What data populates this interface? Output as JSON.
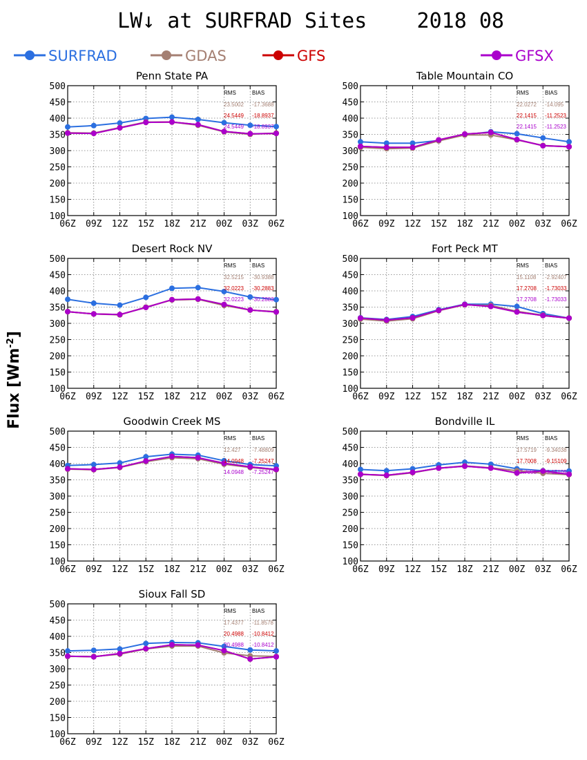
{
  "title": "LW↓ at SURFRAD Sites    2018 08",
  "ylabel_main": "Flux [Wm",
  "ylabel_sup": "-2",
  "ylabel_end": "]",
  "legend": [
    {
      "name": "SURFRAD",
      "color": "#2b6fe0"
    },
    {
      "name": "GDAS",
      "color": "#a47f72"
    },
    {
      "name": "GFS",
      "color": "#cc0000"
    },
    {
      "name": "GFSX",
      "color": "#aa00cc"
    }
  ],
  "stats_header": {
    "rms": "RMS",
    "bias": "BIAS"
  },
  "chart_data": [
    {
      "type": "line",
      "title": "Penn State PA",
      "categories": [
        "06Z",
        "09Z",
        "12Z",
        "15Z",
        "18Z",
        "21Z",
        "00Z",
        "03Z",
        "06Z"
      ],
      "ylim": [
        100,
        500
      ],
      "yticks": [
        100,
        150,
        200,
        250,
        300,
        350,
        400,
        450,
        500
      ],
      "grid": true,
      "series": [
        {
          "name": "SURFRAD",
          "color": "#2b6fe0",
          "values": [
            373,
            377,
            385,
            399,
            403,
            396,
            386,
            378,
            374
          ]
        },
        {
          "name": "GDAS",
          "color": "#a47f72",
          "values": [
            355,
            354,
            371,
            388,
            388,
            378,
            358,
            350,
            354
          ]
        },
        {
          "name": "GFS",
          "color": "#cc0000",
          "values": [
            354,
            353,
            370,
            387,
            388,
            380,
            359,
            352,
            353
          ]
        },
        {
          "name": "GFSX",
          "color": "#aa00cc",
          "values": [
            354,
            353,
            370,
            387,
            388,
            380,
            359,
            352,
            353
          ]
        }
      ],
      "stats": [
        {
          "series": "GDAS",
          "rms": "23.5002",
          "bias": "-17.3688"
        },
        {
          "series": "GFS",
          "rms": "24.5449",
          "bias": "-18.8937"
        },
        {
          "series": "GFSX",
          "rms": "24.5449",
          "bias": "-18.8937"
        }
      ]
    },
    {
      "type": "line",
      "title": "Table Mountain CO",
      "categories": [
        "06Z",
        "09Z",
        "12Z",
        "15Z",
        "18Z",
        "21Z",
        "00Z",
        "03Z",
        "06Z"
      ],
      "ylim": [
        100,
        500
      ],
      "yticks": [
        100,
        150,
        200,
        250,
        300,
        350,
        400,
        450,
        500
      ],
      "grid": true,
      "series": [
        {
          "name": "SURFRAD",
          "color": "#2b6fe0",
          "values": [
            327,
            323,
            323,
            331,
            349,
            358,
            352,
            339,
            327
          ]
        },
        {
          "name": "GDAS",
          "color": "#a47f72",
          "values": [
            310,
            306,
            308,
            330,
            348,
            348,
            333,
            316,
            312
          ]
        },
        {
          "name": "GFS",
          "color": "#cc0000",
          "values": [
            313,
            310,
            310,
            333,
            351,
            356,
            334,
            315,
            312
          ]
        },
        {
          "name": "GFSX",
          "color": "#aa00cc",
          "values": [
            313,
            310,
            310,
            333,
            351,
            356,
            334,
            315,
            312
          ]
        }
      ],
      "stats": [
        {
          "series": "GDAS",
          "rms": "22.0272",
          "bias": "-14.095"
        },
        {
          "series": "GFS",
          "rms": "22.1415",
          "bias": "-11.2523"
        },
        {
          "series": "GFSX",
          "rms": "22.1415",
          "bias": "-11.2523"
        }
      ]
    },
    {
      "type": "line",
      "title": "Desert Rock NV",
      "categories": [
        "06Z",
        "09Z",
        "12Z",
        "15Z",
        "18Z",
        "21Z",
        "00Z",
        "03Z",
        "06Z"
      ],
      "ylim": [
        100,
        500
      ],
      "yticks": [
        100,
        150,
        200,
        250,
        300,
        350,
        400,
        450,
        500
      ],
      "grid": true,
      "series": [
        {
          "name": "SURFRAD",
          "color": "#2b6fe0",
          "values": [
            374,
            362,
            356,
            380,
            408,
            410,
            398,
            381,
            373
          ]
        },
        {
          "name": "GDAS",
          "color": "#a47f72",
          "values": [
            336,
            329,
            326,
            350,
            372,
            374,
            355,
            341,
            336
          ]
        },
        {
          "name": "GFS",
          "color": "#cc0000",
          "values": [
            336,
            329,
            327,
            349,
            373,
            375,
            358,
            341,
            335
          ]
        },
        {
          "name": "GFSX",
          "color": "#aa00cc",
          "values": [
            336,
            329,
            327,
            349,
            373,
            375,
            358,
            341,
            335
          ]
        }
      ],
      "stats": [
        {
          "series": "GDAS",
          "rms": "32.5215",
          "bias": "-30.9388"
        },
        {
          "series": "GFS",
          "rms": "32.0223",
          "bias": "-30.2883"
        },
        {
          "series": "GFSX",
          "rms": "32.0223",
          "bias": "-30.2883"
        }
      ]
    },
    {
      "type": "line",
      "title": "Fort Peck MT",
      "categories": [
        "06Z",
        "09Z",
        "12Z",
        "15Z",
        "18Z",
        "21Z",
        "00Z",
        "03Z",
        "06Z"
      ],
      "ylim": [
        100,
        500
      ],
      "yticks": [
        100,
        150,
        200,
        250,
        300,
        350,
        400,
        450,
        500
      ],
      "grid": true,
      "series": [
        {
          "name": "SURFRAD",
          "color": "#2b6fe0",
          "values": [
            317,
            312,
            321,
            342,
            359,
            359,
            352,
            330,
            316
          ]
        },
        {
          "name": "GDAS",
          "color": "#a47f72",
          "values": [
            313,
            307,
            314,
            339,
            357,
            355,
            337,
            325,
            316
          ]
        },
        {
          "name": "GFS",
          "color": "#cc0000",
          "values": [
            316,
            310,
            317,
            340,
            358,
            352,
            335,
            324,
            316
          ]
        },
        {
          "name": "GFSX",
          "color": "#aa00cc",
          "values": [
            316,
            310,
            317,
            340,
            358,
            352,
            335,
            324,
            316
          ]
        }
      ],
      "stats": [
        {
          "series": "GDAS",
          "rms": "15.1108",
          "bias": "-2.92407"
        },
        {
          "series": "GFS",
          "rms": "17.2708",
          "bias": "-1.73033"
        },
        {
          "series": "GFSX",
          "rms": "17.2708",
          "bias": "-1.73033"
        }
      ]
    },
    {
      "type": "line",
      "title": "Goodwin Creek MS",
      "categories": [
        "06Z",
        "09Z",
        "12Z",
        "15Z",
        "18Z",
        "21Z",
        "00Z",
        "03Z",
        "06Z"
      ],
      "ylim": [
        100,
        500
      ],
      "yticks": [
        100,
        150,
        200,
        250,
        300,
        350,
        400,
        450,
        500
      ],
      "grid": true,
      "series": [
        {
          "name": "SURFRAD",
          "color": "#2b6fe0",
          "values": [
            394,
            397,
            402,
            421,
            429,
            426,
            409,
            397,
            393
          ]
        },
        {
          "name": "GDAS",
          "color": "#a47f72",
          "values": [
            383,
            381,
            388,
            406,
            418,
            415,
            398,
            388,
            381
          ]
        },
        {
          "name": "GFS",
          "color": "#cc0000",
          "values": [
            384,
            382,
            389,
            408,
            422,
            418,
            401,
            390,
            382
          ]
        },
        {
          "name": "GFSX",
          "color": "#aa00cc",
          "values": [
            384,
            382,
            389,
            408,
            422,
            418,
            401,
            390,
            382
          ]
        }
      ],
      "stats": [
        {
          "series": "GDAS",
          "rms": "12.427",
          "bias": "-7.48809"
        },
        {
          "series": "GFS",
          "rms": "14.0948",
          "bias": "-7.25247"
        },
        {
          "series": "GFSX",
          "rms": "14.0948",
          "bias": "-7.25247"
        }
      ]
    },
    {
      "type": "line",
      "title": "Bondville IL",
      "categories": [
        "06Z",
        "09Z",
        "12Z",
        "15Z",
        "18Z",
        "21Z",
        "00Z",
        "03Z",
        "06Z"
      ],
      "ylim": [
        100,
        500
      ],
      "yticks": [
        100,
        150,
        200,
        250,
        300,
        350,
        400,
        450,
        500
      ],
      "grid": true,
      "series": [
        {
          "name": "SURFRAD",
          "color": "#2b6fe0",
          "values": [
            382,
            378,
            384,
            396,
            404,
            398,
            384,
            378,
            377
          ]
        },
        {
          "name": "GDAS",
          "color": "#a47f72",
          "values": [
            367,
            363,
            372,
            386,
            393,
            387,
            378,
            370,
            366
          ]
        },
        {
          "name": "GFS",
          "color": "#cc0000",
          "values": [
            367,
            364,
            373,
            386,
            392,
            386,
            371,
            377,
            367
          ]
        },
        {
          "name": "GFSX",
          "color": "#aa00cc",
          "values": [
            367,
            364,
            373,
            386,
            392,
            386,
            371,
            377,
            367
          ]
        }
      ],
      "stats": [
        {
          "series": "GDAS",
          "rms": "17.5719",
          "bias": "-9.34038"
        },
        {
          "series": "GFS",
          "rms": "17.7008",
          "bias": "-9.15109"
        },
        {
          "series": "GFSX",
          "rms": "17.7008",
          "bias": "-9.15109"
        }
      ]
    },
    {
      "type": "line",
      "title": "Sioux Fall SD",
      "categories": [
        "06Z",
        "09Z",
        "12Z",
        "15Z",
        "18Z",
        "21Z",
        "00Z",
        "03Z",
        "06Z"
      ],
      "ylim": [
        100,
        500
      ],
      "yticks": [
        100,
        150,
        200,
        250,
        300,
        350,
        400,
        450,
        500
      ],
      "grid": true,
      "series": [
        {
          "name": "SURFRAD",
          "color": "#2b6fe0",
          "values": [
            355,
            357,
            361,
            378,
            381,
            380,
            369,
            358,
            355
          ]
        },
        {
          "name": "GDAS",
          "color": "#a47f72",
          "values": [
            338,
            338,
            345,
            361,
            370,
            370,
            349,
            340,
            338
          ]
        },
        {
          "name": "GFS",
          "color": "#cc0000",
          "values": [
            339,
            337,
            347,
            362,
            374,
            373,
            356,
            330,
            337
          ]
        },
        {
          "name": "GFSX",
          "color": "#aa00cc",
          "values": [
            339,
            337,
            347,
            362,
            374,
            373,
            356,
            330,
            337
          ]
        }
      ],
      "stats": [
        {
          "series": "GDAS",
          "rms": "17.4377",
          "bias": "-11.8578"
        },
        {
          "series": "GFS",
          "rms": "20.4988",
          "bias": "-10.8412"
        },
        {
          "series": "GFSX",
          "rms": "20.4988",
          "bias": "-10.8412"
        }
      ]
    }
  ]
}
